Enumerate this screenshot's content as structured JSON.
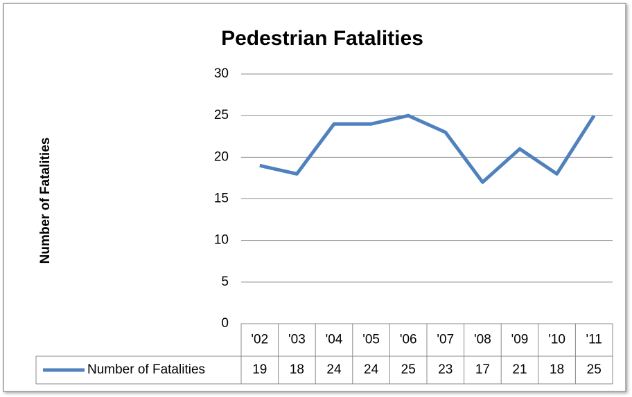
{
  "chart_data": {
    "type": "line",
    "title": "Pedestrian Fatalities",
    "y_label": "Number of Fatalities",
    "categories": [
      "'02",
      "'03",
      "'04",
      "'05",
      "'06",
      "'07",
      "'08",
      "'09",
      "'10",
      "'11"
    ],
    "series": [
      {
        "name": "Number of Fatalities",
        "color": "#4f81bd",
        "values": [
          19,
          18,
          24,
          24,
          25,
          23,
          17,
          21,
          18,
          25
        ]
      }
    ],
    "ylim": [
      0,
      30
    ],
    "yticks": [
      0,
      5,
      10,
      15,
      20,
      25,
      30
    ],
    "grid": true,
    "data_table": true
  }
}
